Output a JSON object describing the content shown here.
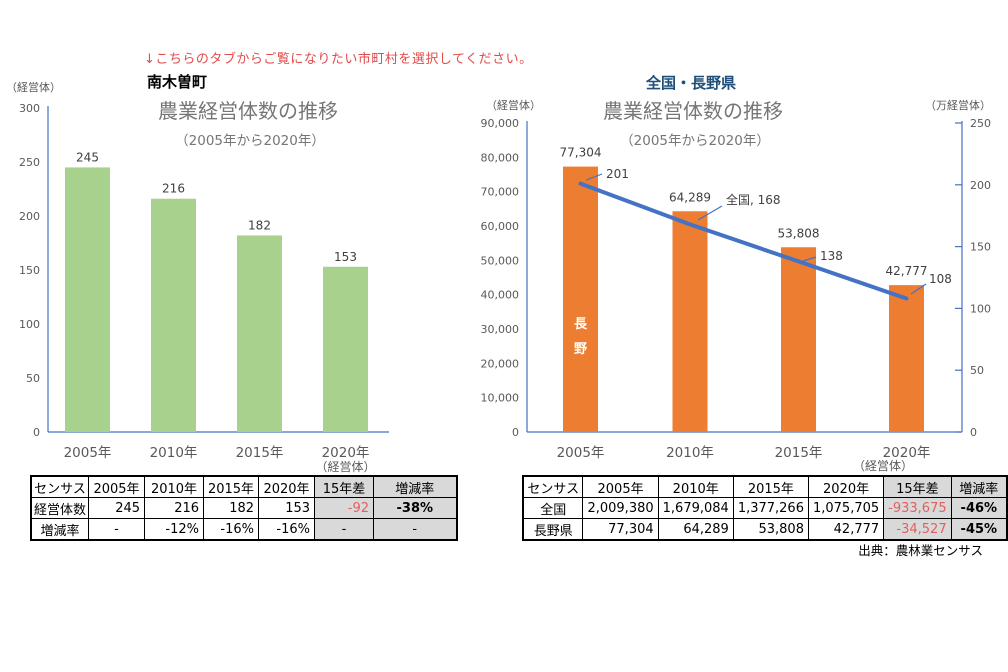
{
  "instruction": "↓こちらのタブからご覧になりたい市町村を選択してください。",
  "source_note": "出典：農林業センサス",
  "colors": {
    "bar_green": "#a9d18e",
    "bar_orange": "#ed7d31",
    "line_blue": "#4472c4",
    "axis_blue": "#4472c4",
    "heading_blue": "#1f4e79",
    "title_gray": "#767676",
    "tick_gray": "#595959",
    "table_highlight_bg": "#d9d9d9",
    "instruction_red": "#e04b4b",
    "negative_red": "#e06060"
  },
  "left_panel": {
    "region": "南木曽町",
    "table": {
      "headers": [
        "センサス",
        "2005年",
        "2010年",
        "2015年",
        "2020年",
        "15年差",
        "増減率"
      ],
      "rows": [
        [
          "経営体数",
          "245",
          "216",
          "182",
          "153",
          "-92",
          "-38%"
        ],
        [
          "増減率",
          "-",
          "-12%",
          "-16%",
          "-16%",
          "-",
          "-"
        ]
      ],
      "highlight_columns": [
        5,
        6
      ]
    }
  },
  "right_panel": {
    "region": "全国・長野県",
    "table": {
      "headers": [
        "センサス",
        "2005年",
        "2010年",
        "2015年",
        "2020年",
        "15年差",
        "増減率"
      ],
      "rows": [
        [
          "全国",
          "2,009,380",
          "1,679,084",
          "1,377,266",
          "1,075,705",
          "-933,675",
          "-46%"
        ],
        [
          "長野県",
          "77,304",
          "64,289",
          "53,808",
          "42,777",
          "-34,527",
          "-45%"
        ]
      ],
      "highlight_columns": [
        5,
        6
      ]
    }
  },
  "chart_data": [
    {
      "id": "nagiso-town",
      "type": "bar",
      "title": "農業経営体数の推移",
      "subtitle": "（2005年から2020年）",
      "y_axis_unit": "（経営体）",
      "x_axis_note": "（経営体）",
      "categories": [
        "2005年",
        "2010年",
        "2015年",
        "2020年"
      ],
      "values": [
        245,
        216,
        182,
        153
      ],
      "value_labels": [
        "245",
        "216",
        "182",
        "153"
      ],
      "ylim": [
        0,
        300
      ],
      "yticks": [
        0,
        50,
        100,
        150,
        200,
        250,
        300
      ],
      "bar_color": "#a9d18e",
      "grid": false,
      "legend": "none"
    },
    {
      "id": "national-nagano",
      "type": "combo-bar-line",
      "title": "農業経営体数の推移",
      "subtitle": "（2005年から2020年）",
      "left_axis": {
        "unit": "（経営体）",
        "lim": [
          0,
          90000
        ],
        "tick_step": 10000
      },
      "right_axis": {
        "unit": "（万経営体）",
        "lim": [
          0,
          250
        ],
        "tick_step": 50
      },
      "x_axis_note": "（経営体）",
      "categories": [
        "2005年",
        "2010年",
        "2015年",
        "2020年"
      ],
      "series": [
        {
          "name": "長野",
          "type": "bar",
          "axis": "left",
          "values": [
            77304,
            64289,
            53808,
            42777
          ],
          "value_labels": [
            "77,304",
            "64,289",
            "53,808",
            "42,777"
          ],
          "color": "#ed7d31",
          "bar_inside_label": "長野"
        },
        {
          "name": "全国",
          "type": "line",
          "axis": "right",
          "values": [
            201,
            168,
            138,
            108
          ],
          "point_labels": [
            "201",
            "全国, 168",
            "138",
            "108"
          ],
          "color": "#4472c4"
        }
      ],
      "grid": false,
      "legend": "none"
    }
  ]
}
